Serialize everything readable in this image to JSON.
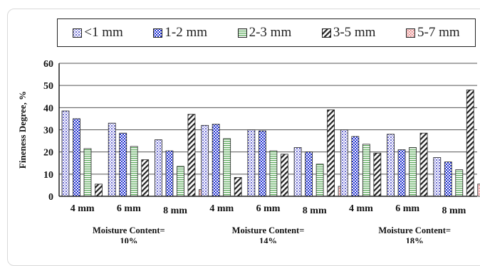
{
  "chart_data": {
    "type": "bar",
    "ylabel": "Fineness Degree, %",
    "ylim": [
      0,
      60
    ],
    "yticks": [
      0,
      10,
      20,
      30,
      40,
      50,
      60
    ],
    "grid": true,
    "legend_position": "top",
    "categories": [
      "4 mm",
      "6 mm",
      "8 mm",
      "4 mm",
      "6 mm",
      "8 mm",
      "4 mm",
      "6 mm",
      "8 mm"
    ],
    "groups": [
      {
        "label_line1": "Moisture Content=",
        "label_line2": "10%"
      },
      {
        "label_line1": "Moisture Content=",
        "label_line2": "14%"
      },
      {
        "label_line1": "Moisture Content=",
        "label_line2": "18%"
      }
    ],
    "series": [
      {
        "name": "<1 mm",
        "color": "#8b8bd8",
        "pattern": "dots",
        "values": [
          38.5,
          33,
          25.5,
          32,
          30,
          22,
          30,
          28,
          17.5
        ]
      },
      {
        "name": "1-2 mm",
        "color": "#2233cc",
        "pattern": "checker",
        "values": [
          35,
          28.5,
          20.5,
          32.5,
          29.5,
          20,
          27,
          21,
          15.5
        ]
      },
      {
        "name": "2-3 mm",
        "color": "#5aaa5a",
        "pattern": "hlines",
        "values": [
          21.5,
          22.5,
          13.5,
          26,
          20.5,
          14.5,
          23.5,
          22,
          12
        ]
      },
      {
        "name": "3-5 mm",
        "color": "#222222",
        "pattern": "diag",
        "values": [
          5.5,
          16.5,
          37,
          8.5,
          19,
          39,
          19.5,
          28.5,
          48
        ]
      },
      {
        "name": "5-7 mm",
        "color": "#e06060",
        "pattern": "pink",
        "values": [
          0,
          0,
          3,
          0,
          0,
          4.5,
          0,
          0,
          5.5
        ]
      }
    ]
  }
}
